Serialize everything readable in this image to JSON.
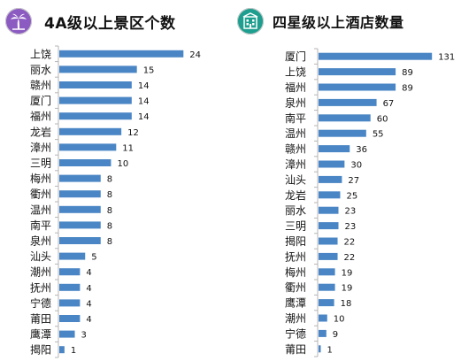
{
  "chart_data": [
    {
      "type": "bar",
      "orientation": "horizontal",
      "title": "4A级以上景区个数",
      "title_icon": "palm-tree-icon",
      "bar_color": "#4a86c5",
      "badge_color": "#8c5bc1",
      "categories": [
        "上饶",
        "丽水",
        "赣州",
        "厦门",
        "福州",
        "龙岩",
        "漳州",
        "三明",
        "梅州",
        "衢州",
        "温州",
        "南平",
        "泉州",
        "汕头",
        "潮州",
        "抚州",
        "宁德",
        "莆田",
        "鹰潭",
        "揭阳"
      ],
      "values": [
        24,
        15,
        14,
        14,
        14,
        12,
        11,
        10,
        8,
        8,
        8,
        8,
        8,
        5,
        4,
        4,
        4,
        4,
        3,
        1
      ],
      "xlim": [
        0,
        26
      ]
    },
    {
      "type": "bar",
      "orientation": "horizontal",
      "title": "四星级以上酒店数量",
      "title_icon": "hotel-building-icon",
      "bar_color": "#4a86c5",
      "badge_color": "#1e9e8e",
      "categories": [
        "厦门",
        "上饶",
        "福州",
        "泉州",
        "南平",
        "温州",
        "赣州",
        "漳州",
        "汕头",
        "龙岩",
        "丽水",
        "三明",
        "揭阳",
        "抚州",
        "梅州",
        "衢州",
        "鹰潭",
        "潮州",
        "宁德",
        "莆田"
      ],
      "values": [
        131,
        89,
        89,
        67,
        60,
        55,
        36,
        30,
        27,
        25,
        23,
        23,
        22,
        22,
        19,
        19,
        18,
        10,
        9,
        1
      ],
      "xlim": [
        0,
        140
      ]
    }
  ]
}
